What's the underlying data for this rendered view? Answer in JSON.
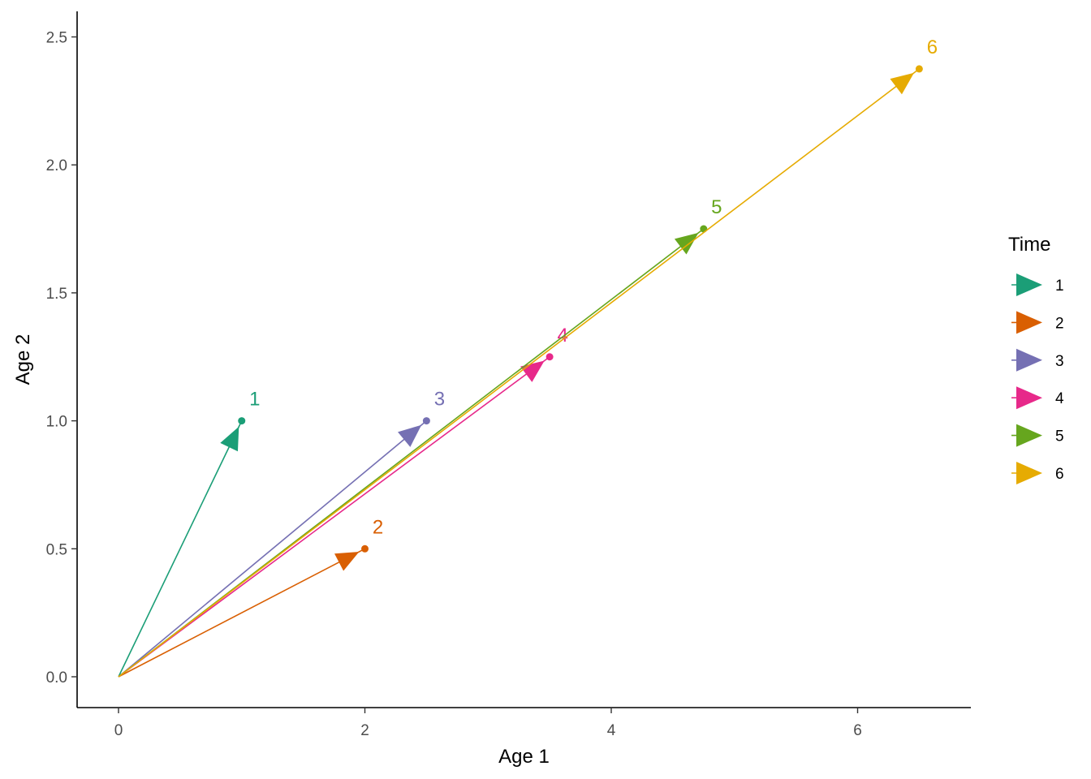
{
  "chart_data": {
    "type": "scatter",
    "title": "",
    "xlabel": "Age 1",
    "ylabel": "Age 2",
    "xlim": [
      0,
      6.5
    ],
    "ylim": [
      0,
      2.5
    ],
    "x_ticks": [
      0,
      2,
      4,
      6
    ],
    "x_tick_labels": [
      "0",
      "2",
      "4",
      "6"
    ],
    "y_ticks": [
      0,
      0.5,
      1.0,
      1.5,
      2.0,
      2.5
    ],
    "y_tick_labels": [
      "0.0",
      "0.5",
      "1.0",
      "1.5",
      "2.0",
      "2.5"
    ],
    "grid": false,
    "legend": {
      "title": "Time",
      "position": "right"
    },
    "series": [
      {
        "name": "1",
        "label": "1",
        "color": "#1B9E77",
        "x": 1.0,
        "y": 1.0
      },
      {
        "name": "2",
        "label": "2",
        "color": "#D95F02",
        "x": 2.0,
        "y": 0.5
      },
      {
        "name": "3",
        "label": "3",
        "color": "#7570B3",
        "x": 2.5,
        "y": 1.0
      },
      {
        "name": "4",
        "label": "4",
        "color": "#E7298A",
        "x": 3.5,
        "y": 1.25
      },
      {
        "name": "5",
        "label": "5",
        "color": "#66A61E",
        "x": 4.75,
        "y": 1.75
      },
      {
        "name": "6",
        "label": "6",
        "color": "#E6AB02",
        "x": 6.5,
        "y": 2.375
      }
    ]
  }
}
